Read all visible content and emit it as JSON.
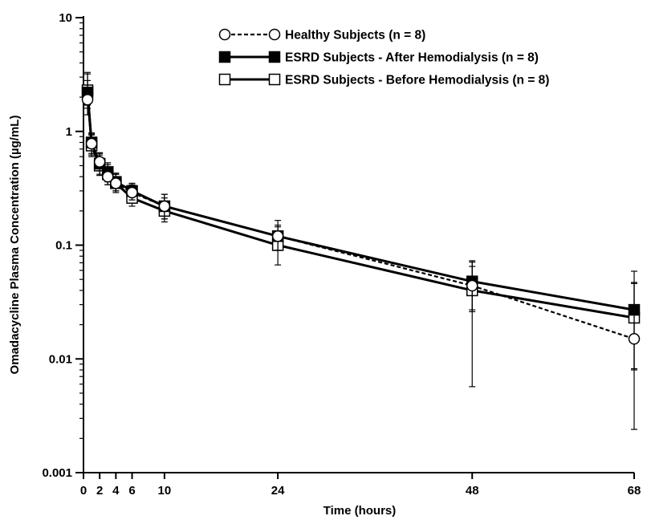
{
  "chart_data": {
    "type": "line",
    "title": "",
    "xlabel": "Time (hours)",
    "ylabel": "Omadacycline Plasma Concentration (µg/mL)",
    "x_scale": "linear",
    "y_scale": "log",
    "xlim": [
      0,
      68
    ],
    "ylim": [
      0.001,
      10
    ],
    "x_ticks": [
      0,
      2,
      4,
      6,
      10,
      24,
      48,
      68
    ],
    "y_ticks": [
      0.001,
      0.01,
      0.1,
      1,
      10
    ],
    "y_tick_labels": [
      "0.001",
      "0.01",
      "0.1",
      "1",
      "10"
    ],
    "grid": false,
    "legend_position": "top-right",
    "series": [
      {
        "name": "Healthy Subjects (n = 8)",
        "marker": "open-circle",
        "line": "dashed",
        "x": [
          0.5,
          1,
          2,
          3,
          4,
          6,
          10,
          24,
          48,
          68
        ],
        "y": [
          1.9,
          0.78,
          0.54,
          0.4,
          0.35,
          0.29,
          0.22,
          0.12,
          0.044,
          0.015
        ],
        "err_low": [
          1.4,
          0.62,
          0.45,
          0.34,
          0.3,
          0.25,
          0.17,
          0.09,
          0.0057,
          0.0024
        ],
        "err_high": [
          2.8,
          0.95,
          0.64,
          0.48,
          0.42,
          0.34,
          0.28,
          0.165,
          0.073,
          0.046
        ]
      },
      {
        "name": "ESRD Subjects - After Hemodialysis (n = 8)",
        "marker": "filled-square",
        "line": "solid",
        "x": [
          0.5,
          1,
          2,
          3,
          4,
          6,
          10,
          24,
          48,
          68
        ],
        "y": [
          2.2,
          0.8,
          0.52,
          0.44,
          0.36,
          0.3,
          0.22,
          0.12,
          0.048,
          0.027
        ],
        "err_low": [
          1.6,
          0.64,
          0.42,
          0.36,
          0.3,
          0.25,
          0.17,
          0.09,
          0.026,
          0.008
        ],
        "err_high": [
          3.3,
          0.97,
          0.65,
          0.53,
          0.43,
          0.35,
          0.28,
          0.15,
          0.071,
          0.047
        ]
      },
      {
        "name": "ESRD Subjects - Before Hemodialysis (n = 8)",
        "marker": "open-square",
        "line": "solid",
        "x": [
          0.5,
          1,
          2,
          3,
          4,
          6,
          10,
          24,
          48,
          68
        ],
        "y": [
          2.3,
          0.75,
          0.5,
          0.42,
          0.35,
          0.26,
          0.2,
          0.1,
          0.04,
          0.023
        ],
        "err_low": [
          1.7,
          0.6,
          0.41,
          0.34,
          0.29,
          0.22,
          0.16,
          0.067,
          0.027,
          0.0082
        ],
        "err_high": [
          3.2,
          0.93,
          0.62,
          0.51,
          0.42,
          0.32,
          0.26,
          0.145,
          0.065,
          0.059
        ]
      }
    ]
  }
}
